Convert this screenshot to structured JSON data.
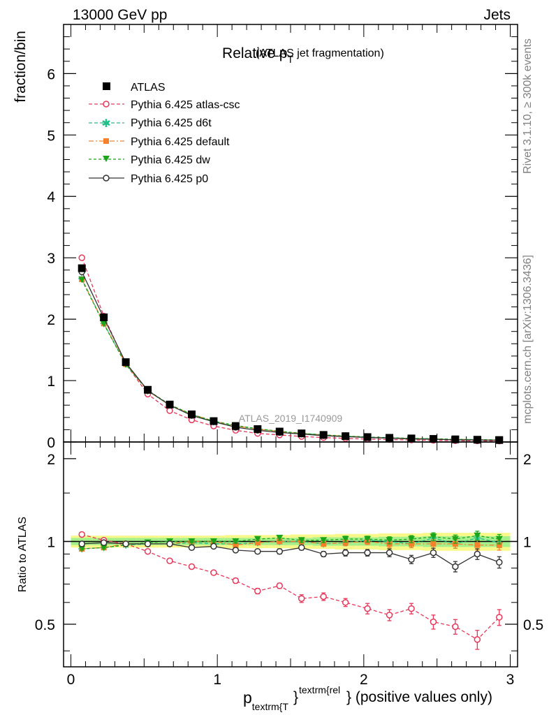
{
  "header": {
    "left": "13000 GeV pp",
    "right": "Jets"
  },
  "side_labels": {
    "rivet": "Rivet 3.1.10, ≥ 300k events",
    "mcplots": "mcplots.cern.ch [arXiv:1306.3436]"
  },
  "colors": {
    "atlas": "#000000",
    "atlas_csc": "#e8365a",
    "d6t": "#1fbf8a",
    "default": "#f5822a",
    "dw": "#1aa51a",
    "p0": "#333333",
    "band_inner": "#a6f08c",
    "band_outer": "#f8f88a"
  },
  "chart_data": [
    {
      "type": "line",
      "panel": "main",
      "title_main": "Relative p",
      "title_sub": "T",
      "title_rest": "(ATLAS jet fragmentation)",
      "ylabel": "fraction/bin",
      "watermark": "ATLAS_2019_I1740909",
      "xlim": [
        -0.05,
        3.05
      ],
      "ylim": [
        0,
        6.8
      ],
      "yticks": [
        0,
        1,
        2,
        3,
        4,
        5,
        6
      ],
      "ytick_labels": [
        "0",
        "1",
        "2",
        "3",
        "4",
        "5",
        "6"
      ],
      "x": [
        0.075,
        0.225,
        0.375,
        0.525,
        0.675,
        0.825,
        0.975,
        1.125,
        1.275,
        1.425,
        1.575,
        1.725,
        1.875,
        2.025,
        2.175,
        2.325,
        2.475,
        2.625,
        2.775,
        2.925
      ],
      "series": [
        {
          "name": "ATLAS",
          "key": "atlas",
          "marker": "square",
          "values": [
            2.83,
            2.03,
            1.3,
            0.85,
            0.61,
            0.45,
            0.34,
            0.26,
            0.21,
            0.17,
            0.14,
            0.115,
            0.095,
            0.08,
            0.068,
            0.058,
            0.05,
            0.043,
            0.037,
            0.032
          ]
        },
        {
          "name": "Pythia 6.425 atlas-csc",
          "key": "atlas_csc",
          "marker": "open-circle",
          "dash": "5,3",
          "values": [
            3.0,
            2.05,
            1.27,
            0.78,
            0.51,
            0.36,
            0.26,
            0.19,
            0.14,
            0.115,
            0.09,
            0.072,
            0.058,
            0.047,
            0.038,
            0.033,
            0.027,
            0.022,
            0.018,
            0.016
          ]
        },
        {
          "name": "Pythia 6.425 d6t",
          "key": "d6t",
          "marker": "star",
          "dash": "5,3",
          "values": [
            2.66,
            1.93,
            1.27,
            0.83,
            0.6,
            0.45,
            0.33,
            0.26,
            0.21,
            0.17,
            0.14,
            0.113,
            0.094,
            0.081,
            0.068,
            0.058,
            0.052,
            0.043,
            0.038,
            0.032
          ]
        },
        {
          "name": "Pythia 6.425 default",
          "key": "default",
          "marker": "square-small",
          "dash": "7,3,2,3",
          "values": [
            2.65,
            1.93,
            1.27,
            0.83,
            0.6,
            0.45,
            0.34,
            0.26,
            0.21,
            0.17,
            0.14,
            0.113,
            0.094,
            0.08,
            0.067,
            0.057,
            0.049,
            0.042,
            0.036,
            0.031
          ]
        },
        {
          "name": "Pythia 6.425 dw",
          "key": "dw",
          "marker": "triangle-down",
          "dash": "4,3",
          "values": [
            2.64,
            1.92,
            1.26,
            0.84,
            0.61,
            0.45,
            0.34,
            0.27,
            0.215,
            0.175,
            0.142,
            0.116,
            0.097,
            0.082,
            0.069,
            0.059,
            0.052,
            0.044,
            0.039,
            0.033
          ]
        },
        {
          "name": "Pythia 6.425 p0",
          "key": "p0",
          "marker": "open-circle",
          "dash": "",
          "values": [
            2.77,
            2.02,
            1.29,
            0.84,
            0.6,
            0.43,
            0.33,
            0.24,
            0.19,
            0.155,
            0.13,
            0.103,
            0.087,
            0.073,
            0.062,
            0.05,
            0.045,
            0.035,
            0.033,
            0.027
          ]
        }
      ]
    },
    {
      "type": "line",
      "panel": "ratio",
      "ylabel": "Ratio to ATLAS",
      "xlabel_main": "p",
      "xlabel_sub": "textrm{T",
      "xlabel_sup": "textrm{rel",
      "xlabel_rest": "} (positive values only)",
      "xlim": [
        -0.05,
        3.05
      ],
      "ylim": [
        0.35,
        2.3
      ],
      "yticks": [
        0.5,
        1,
        2
      ],
      "ytick_labels": [
        "0.5",
        "1",
        "2"
      ],
      "xticks": [
        0,
        1,
        2,
        3
      ],
      "xtick_labels": [
        "0",
        "1",
        "2",
        "3"
      ],
      "x": [
        0.075,
        0.225,
        0.375,
        0.525,
        0.675,
        0.825,
        0.975,
        1.125,
        1.275,
        1.425,
        1.575,
        1.725,
        1.875,
        2.025,
        2.175,
        2.325,
        2.475,
        2.625,
        2.775,
        2.925
      ],
      "band_inner": [
        0.03,
        0.03,
        0.03,
        0.03,
        0.03,
        0.03,
        0.03,
        0.03,
        0.03,
        0.03,
        0.03,
        0.035,
        0.035,
        0.035,
        0.04,
        0.04,
        0.045,
        0.045,
        0.045,
        0.045
      ],
      "band_outer": [
        0.05,
        0.05,
        0.05,
        0.05,
        0.05,
        0.05,
        0.05,
        0.055,
        0.055,
        0.055,
        0.06,
        0.06,
        0.065,
        0.065,
        0.07,
        0.07,
        0.075,
        0.075,
        0.075,
        0.075
      ],
      "series": [
        {
          "name": "Pythia 6.425 atlas-csc",
          "key": "atlas_csc",
          "marker": "open-circle",
          "dash": "5,3",
          "values": [
            1.06,
            1.01,
            0.98,
            0.92,
            0.85,
            0.81,
            0.77,
            0.72,
            0.66,
            0.69,
            0.62,
            0.63,
            0.6,
            0.57,
            0.54,
            0.57,
            0.51,
            0.49,
            0.44,
            0.53
          ],
          "errors": [
            0.01,
            0.01,
            0.01,
            0.01,
            0.01,
            0.01,
            0.01,
            0.015,
            0.015,
            0.015,
            0.02,
            0.02,
            0.02,
            0.025,
            0.025,
            0.025,
            0.03,
            0.03,
            0.035,
            0.035
          ]
        },
        {
          "name": "Pythia 6.425 d6t",
          "key": "d6t",
          "marker": "star",
          "dash": "5,3",
          "values": [
            0.94,
            0.95,
            0.97,
            0.98,
            0.98,
            0.99,
            0.98,
            0.98,
            0.99,
            1.0,
            1.0,
            0.98,
            0.99,
            1.01,
            1.0,
            0.98,
            1.03,
            0.98,
            1.03,
            0.99
          ],
          "errors": [
            0.01,
            0.01,
            0.01,
            0.01,
            0.01,
            0.01,
            0.015,
            0.015,
            0.015,
            0.02,
            0.02,
            0.02,
            0.025,
            0.025,
            0.03,
            0.03,
            0.035,
            0.035,
            0.04,
            0.04
          ]
        },
        {
          "name": "Pythia 6.425 default",
          "key": "default",
          "marker": "square-small",
          "dash": "7,3,2,3",
          "values": [
            0.94,
            0.95,
            0.98,
            0.98,
            0.98,
            1.0,
            1.0,
            0.97,
            0.99,
            1.0,
            1.0,
            0.98,
            0.99,
            1.0,
            0.98,
            0.98,
            0.98,
            0.98,
            0.97,
            0.97
          ],
          "errors": [
            0.01,
            0.01,
            0.01,
            0.01,
            0.01,
            0.01,
            0.015,
            0.015,
            0.015,
            0.02,
            0.02,
            0.02,
            0.025,
            0.025,
            0.03,
            0.03,
            0.035,
            0.035,
            0.04,
            0.04
          ]
        },
        {
          "name": "Pythia 6.425 dw",
          "key": "dw",
          "marker": "triangle-down",
          "dash": "4,3",
          "values": [
            0.94,
            0.95,
            0.97,
            0.99,
            1.0,
            1.0,
            1.0,
            1.0,
            1.02,
            1.03,
            1.01,
            1.01,
            1.02,
            1.02,
            1.01,
            1.02,
            1.04,
            1.02,
            1.05,
            1.02
          ],
          "errors": [
            0.01,
            0.01,
            0.01,
            0.01,
            0.01,
            0.01,
            0.015,
            0.015,
            0.015,
            0.02,
            0.02,
            0.02,
            0.025,
            0.025,
            0.03,
            0.03,
            0.035,
            0.035,
            0.04,
            0.04
          ]
        },
        {
          "name": "Pythia 6.425 p0",
          "key": "p0",
          "marker": "open-circle",
          "dash": "",
          "values": [
            0.98,
            0.99,
            0.98,
            0.98,
            0.98,
            0.95,
            0.96,
            0.93,
            0.92,
            0.92,
            0.95,
            0.9,
            0.91,
            0.91,
            0.91,
            0.86,
            0.91,
            0.81,
            0.9,
            0.84
          ],
          "errors": [
            0.01,
            0.01,
            0.01,
            0.01,
            0.01,
            0.01,
            0.015,
            0.015,
            0.015,
            0.02,
            0.02,
            0.02,
            0.025,
            0.025,
            0.03,
            0.03,
            0.035,
            0.035,
            0.04,
            0.04
          ]
        }
      ]
    }
  ]
}
